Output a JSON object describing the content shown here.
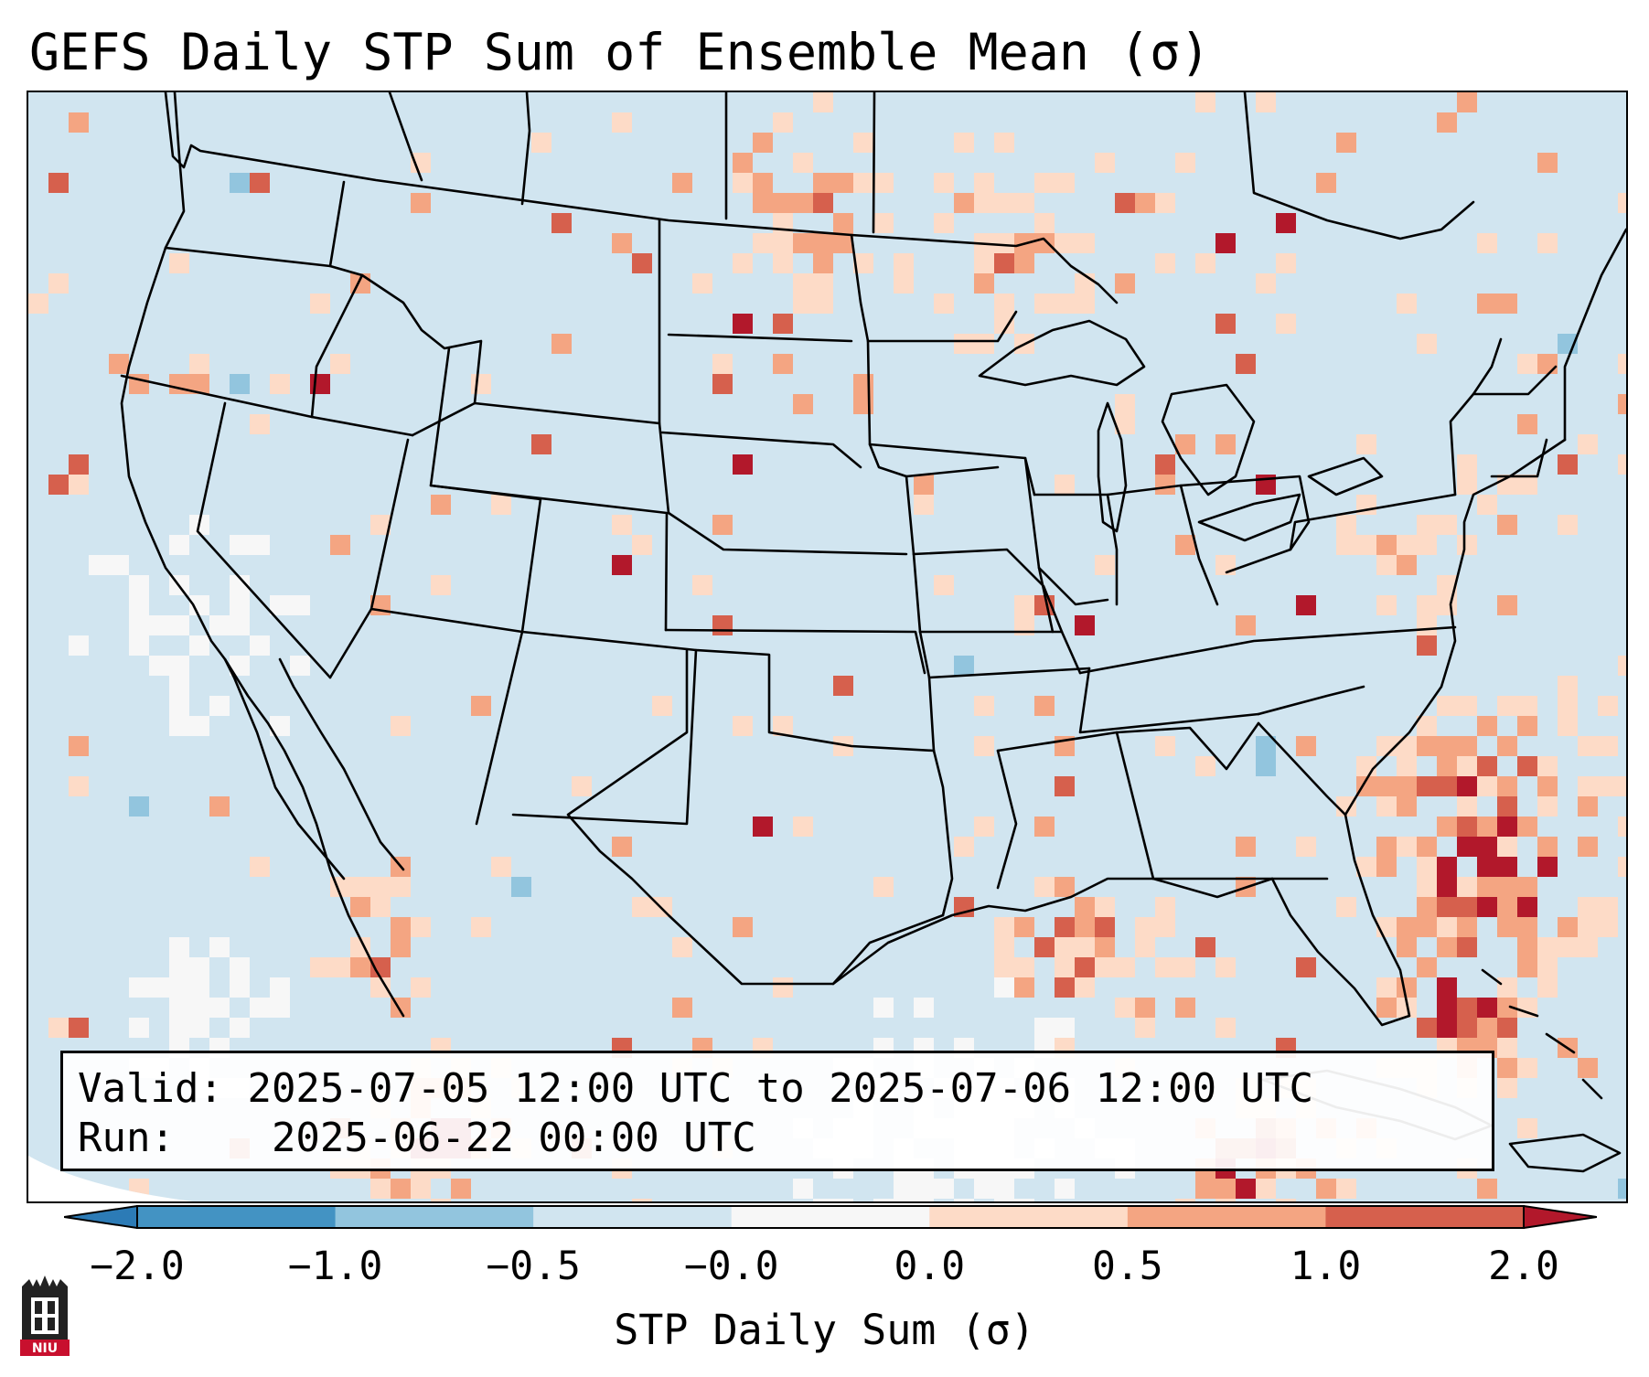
{
  "title": "GEFS Daily STP Sum of Ensemble Mean (σ)",
  "info_box": {
    "valid_label": "Valid:",
    "valid_value": "2025-07-05 12:00 UTC to 2025-07-06 12:00 UTC",
    "run_label": "Run:",
    "run_value": "2025-06-22 00:00 UTC"
  },
  "colorbar": {
    "title": "STP Daily Sum (σ)",
    "tick_labels": [
      "−2.0",
      "−1.0",
      "−0.5",
      "−0.0",
      "0.0",
      "0.5",
      "1.0",
      "2.0"
    ],
    "bin_colors": [
      "#2c7bb6",
      "#4393c3",
      "#92c5de",
      "#d1e5f0",
      "#f7f7f7",
      "#fddbc7",
      "#f4a582",
      "#d6604d",
      "#b2182b"
    ]
  },
  "map": {
    "ocean_color": "#d1e5f0",
    "boundary_color": "#000000",
    "features": [
      "state-borders",
      "country-borders",
      "coastlines",
      "great-lakes"
    ]
  },
  "logo": {
    "text": "NIU",
    "color": "#c8102e"
  }
}
